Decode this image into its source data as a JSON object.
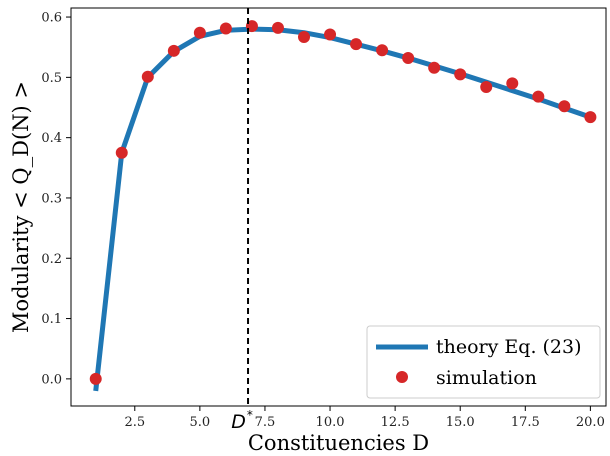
{
  "colors": {
    "theory": "#1f77b4",
    "simulation": "#d62728",
    "marker_line": "#000000"
  },
  "chart_data": {
    "type": "line",
    "xlabel": "Constituencies D",
    "ylabel": "Modularity < Q_D(N) >",
    "xlim": [
      0.05,
      20.6
    ],
    "ylim": [
      -0.045,
      0.615
    ],
    "xticks": [
      2.5,
      5.0,
      7.5,
      10.0,
      12.5,
      15.0,
      17.5,
      20.0
    ],
    "xtick_labels": [
      "2.5",
      "5.0",
      "7.5",
      "10.0",
      "12.5",
      "15.0",
      "17.5",
      "20.0"
    ],
    "yticks": [
      0.0,
      0.1,
      0.2,
      0.3,
      0.4,
      0.5,
      0.6
    ],
    "ytick_labels": [
      "0.0",
      "0.1",
      "0.2",
      "0.3",
      "0.4",
      "0.5",
      "0.6"
    ],
    "grid": false,
    "legend_position": "bottom-right",
    "series": [
      {
        "name": "theory Eq. (23)",
        "style": "line",
        "x": [
          1,
          2,
          3,
          4,
          5,
          6,
          7,
          8,
          9,
          10,
          11,
          12,
          13,
          14,
          15,
          16,
          17,
          18,
          19,
          20
        ],
        "y": [
          -0.02,
          0.375,
          0.5,
          0.543,
          0.568,
          0.578,
          0.58,
          0.579,
          0.574,
          0.566,
          0.555,
          0.544,
          0.532,
          0.519,
          0.506,
          0.492,
          0.478,
          0.464,
          0.449,
          0.434
        ]
      },
      {
        "name": "simulation",
        "style": "scatter",
        "x": [
          1,
          2,
          3,
          4,
          5,
          6,
          7,
          8,
          9,
          10,
          11,
          12,
          13,
          14,
          15,
          16,
          17,
          18,
          19,
          20
        ],
        "y": [
          0.0,
          0.375,
          0.501,
          0.544,
          0.574,
          0.581,
          0.585,
          0.582,
          0.567,
          0.571,
          0.555,
          0.545,
          0.532,
          0.516,
          0.505,
          0.484,
          0.49,
          0.468,
          0.452,
          0.434
        ]
      }
    ],
    "annotations": [
      {
        "type": "vline",
        "x": 6.85,
        "style": "dashed",
        "label_main": "D",
        "label_sup": "*"
      }
    ]
  }
}
